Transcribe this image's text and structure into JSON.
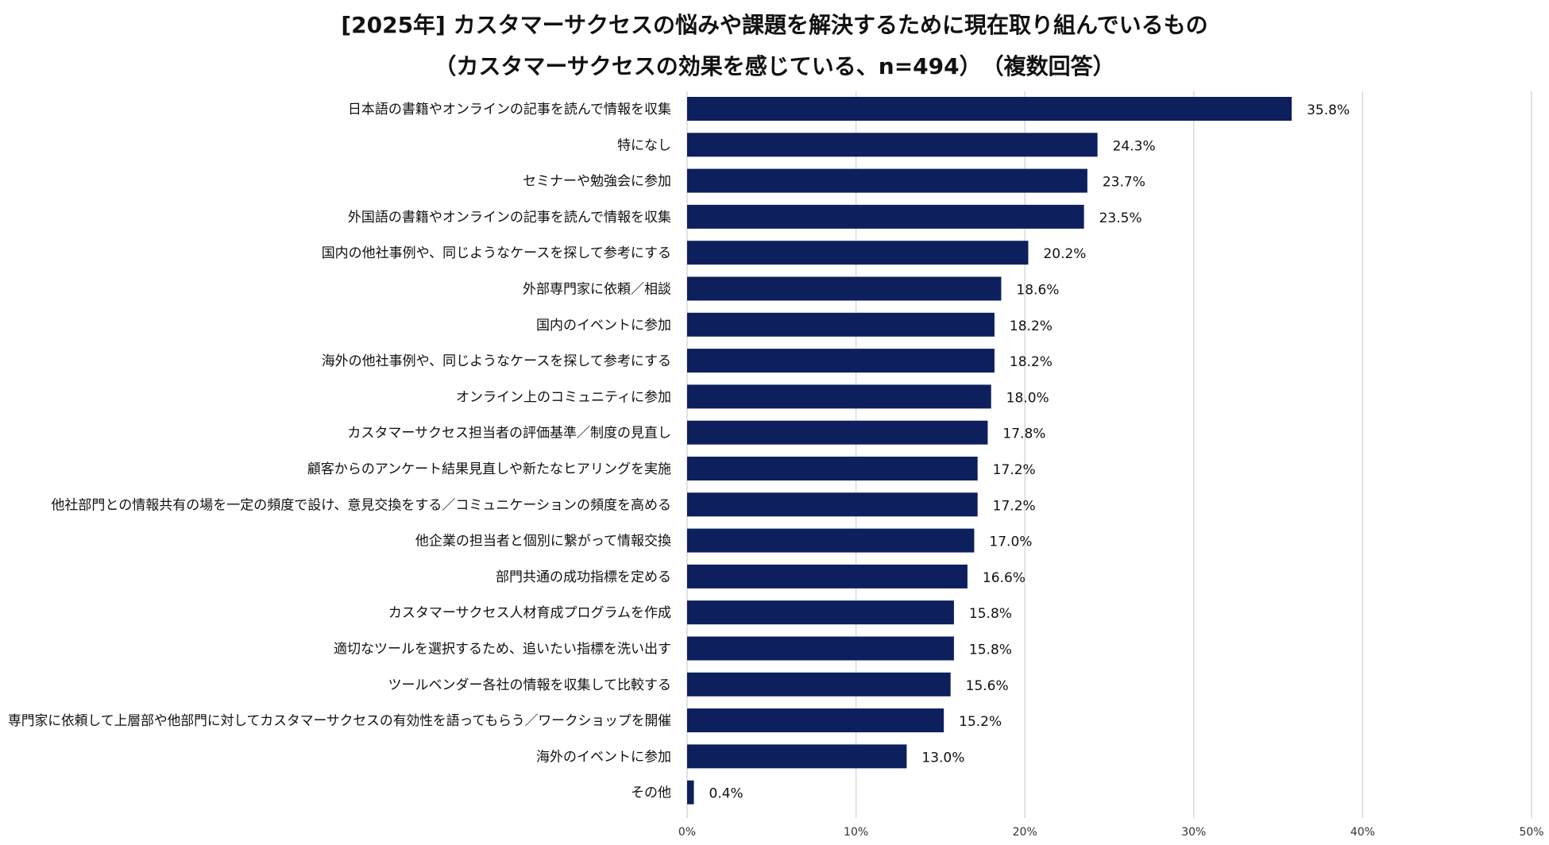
{
  "chart_data": {
    "type": "bar",
    "orientation": "horizontal",
    "title": "[2025年] カスタマーサクセスの悩みや課題を解決するために現在取り組んでいるもの",
    "subtitle": "（カスタマーサクセスの効果を感じている、n=494）　（複数回答）",
    "xlabel": "",
    "ylabel": "",
    "xlim": [
      0,
      50
    ],
    "xticks": [
      0,
      10,
      20,
      30,
      40,
      50
    ],
    "xtick_labels": [
      "0%",
      "10%",
      "20%",
      "30%",
      "40%",
      "50%"
    ],
    "grid": true,
    "bar_color": "#0d1f5c",
    "grid_color": "#d9d9d9",
    "categories": [
      "日本語の書籍やオンラインの記事を読んで情報を収集",
      "特になし",
      "セミナーや勉強会に参加",
      "外国語の書籍やオンラインの記事を読んで情報を収集",
      "国内の他社事例や、同じようなケースを探して参考にする",
      "外部専門家に依頼／相談",
      "国内のイベントに参加",
      "海外の他社事例や、同じようなケースを探して参考にする",
      "オンライン上のコミュニティに参加",
      "カスタマーサクセス担当者の評価基準／制度の見直し",
      "顧客からのアンケート結果見直しや新たなヒアリングを実施",
      "他社部門との情報共有の場を一定の頻度で設け、意見交換をする／コミュニケーションの頻度を高める",
      "他企業の担当者と個別に繋がって情報交換",
      "部門共通の成功指標を定める",
      "カスタマーサクセス人材育成プログラムを作成",
      "適切なツールを選択するため、追いたい指標を洗い出す",
      "ツールベンダー各社の情報を収集して比較する",
      "専門家に依頼して上層部や他部門に対してカスタマーサクセスの有効性を語ってもらう／ワークショップを開催",
      "海外のイベントに参加",
      "その他"
    ],
    "values": [
      35.8,
      24.3,
      23.7,
      23.5,
      20.2,
      18.6,
      18.2,
      18.2,
      18.0,
      17.8,
      17.2,
      17.2,
      17.0,
      16.6,
      15.8,
      15.8,
      15.6,
      15.2,
      13.0,
      0.4
    ],
    "value_labels": [
      "35.8%",
      "24.3%",
      "23.7%",
      "23.5%",
      "20.2%",
      "18.6%",
      "18.2%",
      "18.2%",
      "18.0%",
      "17.8%",
      "17.2%",
      "17.2%",
      "17.0%",
      "16.6%",
      "15.8%",
      "15.8%",
      "15.6%",
      "15.2%",
      "13.0%",
      "0.4%"
    ]
  }
}
